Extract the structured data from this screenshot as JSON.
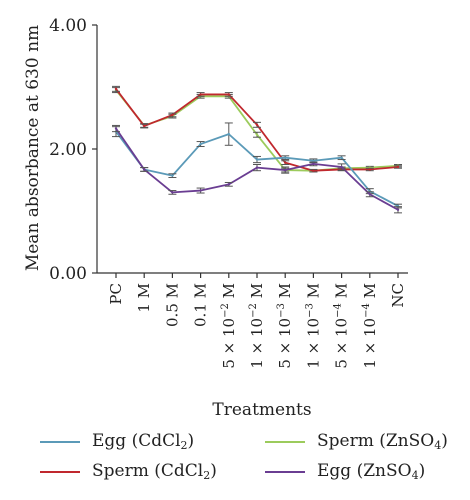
{
  "chart_data": {
    "type": "line",
    "title": "",
    "xlabel": "Treatments",
    "ylabel": "Mean absorbance at 630 nm",
    "ylim": [
      0,
      4
    ],
    "yticks": [
      "0.00",
      "2.00",
      "4.00"
    ],
    "grid": false,
    "legend_position": "bottom",
    "categories": [
      "PC",
      "1 M",
      "0.5 M",
      "0.1 M",
      "5 × 10^-2 M",
      "1 × 10^-2 M",
      "5 × 10^-3 M",
      "1 × 10^-3 M",
      "5 × 10^-4 M",
      "1 × 10^-4 M",
      "NC"
    ],
    "series": [
      {
        "name": "Egg (CdCl2)",
        "name_main": "Egg (CdCl",
        "name_sub": "2",
        "name_end": ")",
        "color": "#5b9ab8",
        "values": [
          2.28,
          1.67,
          1.57,
          2.08,
          2.24,
          1.83,
          1.86,
          1.81,
          1.86,
          1.32,
          1.08
        ],
        "errors": [
          0.08,
          0.03,
          0.03,
          0.04,
          0.18,
          0.05,
          0.03,
          0.03,
          0.03,
          0.04,
          0.03
        ]
      },
      {
        "name": "Sperm (CdCl2)",
        "name_main": "Sperm (CdCl",
        "name_sub": "2",
        "name_end": ")",
        "color": "#c0282e",
        "values": [
          2.97,
          2.37,
          2.55,
          2.88,
          2.88,
          2.39,
          1.78,
          1.65,
          1.67,
          1.67,
          1.71
        ],
        "errors": [
          0.04,
          0.03,
          0.03,
          0.03,
          0.03,
          0.04,
          0.03,
          0.02,
          0.02,
          0.02,
          0.02
        ]
      },
      {
        "name": "Sperm (ZnSO4)",
        "name_main": "Sperm (ZnSO",
        "name_sub": "4",
        "name_end": ")",
        "color": "#9ccb5c",
        "values": [
          2.95,
          2.38,
          2.53,
          2.85,
          2.85,
          2.23,
          1.66,
          1.65,
          1.69,
          1.7,
          1.73
        ],
        "errors": [
          0.04,
          0.03,
          0.03,
          0.03,
          0.03,
          0.04,
          0.03,
          0.02,
          0.02,
          0.02,
          0.02
        ]
      },
      {
        "name": "Egg (ZnSO4)",
        "name_main": "Egg (ZnSO",
        "name_sub": "4",
        "name_end": ")",
        "color": "#6a3d92",
        "values": [
          2.33,
          1.67,
          1.3,
          1.33,
          1.43,
          1.7,
          1.66,
          1.76,
          1.71,
          1.27,
          1.02
        ],
        "errors": [
          0.05,
          0.03,
          0.03,
          0.04,
          0.03,
          0.05,
          0.05,
          0.03,
          0.05,
          0.04,
          0.05
        ]
      }
    ]
  }
}
